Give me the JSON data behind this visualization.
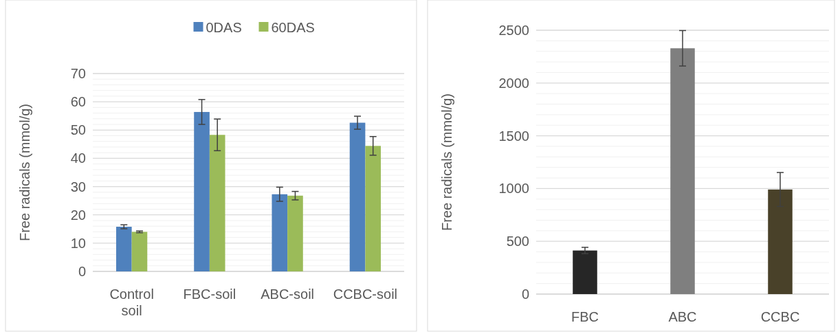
{
  "chart_data": [
    {
      "type": "bar",
      "ylabel": "Free radicals (mmol/g)",
      "categories": [
        "Control soil",
        "FBC-soil",
        "ABC-soil",
        "CCBC-soil"
      ],
      "series": [
        {
          "name": "0DAS",
          "color": "#4f81bd",
          "values": [
            15.8,
            56.4,
            27.3,
            52.6
          ],
          "errors": [
            0.7,
            4.4,
            2.5,
            2.3
          ]
        },
        {
          "name": "60DAS",
          "color": "#9bbb59",
          "values": [
            14.0,
            48.3,
            26.8,
            44.4
          ],
          "errors": [
            0.3,
            5.6,
            1.5,
            3.3
          ]
        }
      ],
      "ylim": [
        0,
        70
      ],
      "yticks": [
        0,
        {
          "value": 2,
          "label": null
        },
        {
          "value": 4,
          "label": null
        },
        {
          "value": 6,
          "label": null
        },
        {
          "value": 8,
          "label": null
        },
        10,
        {
          "value": 12,
          "label": null
        },
        {
          "value": 14,
          "label": null
        },
        {
          "value": 16,
          "label": null
        },
        {
          "value": 18,
          "label": null
        },
        20,
        {
          "value": 22,
          "label": null
        },
        {
          "value": 24,
          "label": null
        },
        {
          "value": 26,
          "label": null
        },
        {
          "value": 28,
          "label": null
        },
        30,
        {
          "value": 32,
          "label": null
        },
        {
          "value": 34,
          "label": null
        },
        {
          "value": 36,
          "label": null
        },
        {
          "value": 38,
          "label": null
        },
        40,
        {
          "value": 42,
          "label": null
        },
        {
          "value": 44,
          "label": null
        },
        {
          "value": 46,
          "label": null
        },
        {
          "value": 48,
          "label": null
        },
        50,
        {
          "value": 52,
          "label": null
        },
        {
          "value": 54,
          "label": null
        },
        {
          "value": 56,
          "label": null
        },
        {
          "value": 58,
          "label": null
        },
        60,
        {
          "value": 62,
          "label": null
        },
        {
          "value": 64,
          "label": null
        },
        {
          "value": 66,
          "label": null
        },
        {
          "value": 68,
          "label": null
        },
        70
      ],
      "grid": "y",
      "legend": "top"
    },
    {
      "type": "bar",
      "ylabel": "Free radicals (mmol/g)",
      "categories": [
        "FBC",
        "ABC",
        "CCBC"
      ],
      "values": [
        413,
        2329,
        991
      ],
      "colors": [
        "#262626",
        "#7f7f7f",
        "#494129"
      ],
      "errors": [
        30,
        168,
        161
      ],
      "ylim": [
        0,
        2500
      ],
      "yticks": [
        0,
        {
          "value": 100,
          "label": null
        },
        {
          "value": 200,
          "label": null
        },
        {
          "value": 300,
          "label": null
        },
        {
          "value": 400,
          "label": null
        },
        500,
        {
          "value": 600,
          "label": null
        },
        {
          "value": 700,
          "label": null
        },
        {
          "value": 800,
          "label": null
        },
        {
          "value": 900,
          "label": null
        },
        1000,
        {
          "value": 1100,
          "label": null
        },
        {
          "value": 1200,
          "label": null
        },
        {
          "value": 1300,
          "label": null
        },
        {
          "value": 1400,
          "label": null
        },
        1500,
        {
          "value": 1600,
          "label": null
        },
        {
          "value": 1700,
          "label": null
        },
        {
          "value": 1800,
          "label": null
        },
        {
          "value": 1900,
          "label": null
        },
        2000,
        {
          "value": 2100,
          "label": null
        },
        {
          "value": 2200,
          "label": null
        },
        {
          "value": 2300,
          "label": null
        },
        {
          "value": 2400,
          "label": null
        },
        2500
      ],
      "grid": "y"
    }
  ]
}
